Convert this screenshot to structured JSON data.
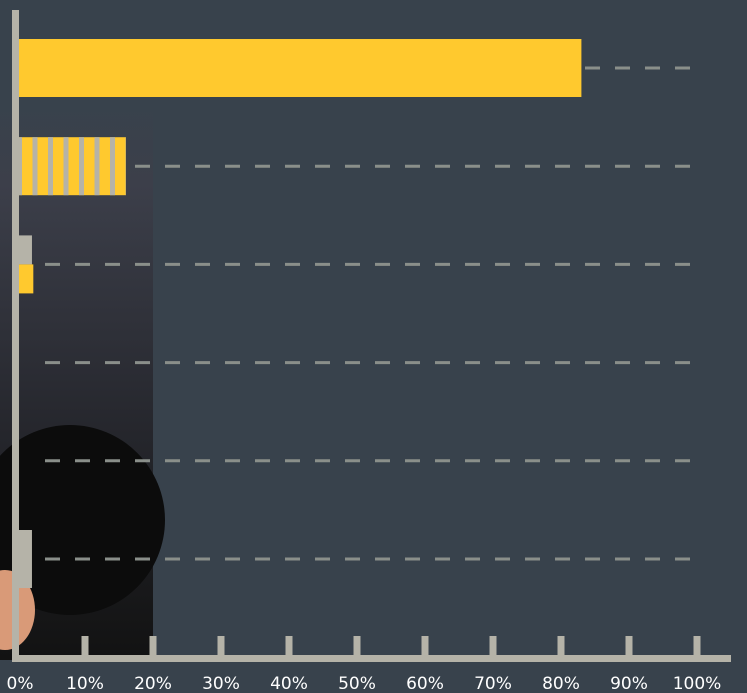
{
  "chart_data": {
    "type": "bar",
    "orientation": "horizontal",
    "categories": [
      null,
      null,
      null,
      null,
      null,
      null
    ],
    "series": [
      {
        "color": "#ffc92e",
        "values": [
          83,
          16,
          2.4,
          0,
          0,
          0
        ]
      },
      {
        "color": "#b5b3a8",
        "values": [
          0,
          16,
          2.2,
          0,
          0,
          2.2
        ]
      }
    ],
    "xlim": [
      0,
      105
    ],
    "xticks": [
      {
        "value": 0,
        "label": "0%"
      },
      {
        "value": 10,
        "label": "10%"
      },
      {
        "value": 20,
        "label": "20%"
      },
      {
        "value": 30,
        "label": "30%"
      },
      {
        "value": 40,
        "label": "40%"
      },
      {
        "value": 50,
        "label": "50%"
      },
      {
        "value": 60,
        "label": "60%"
      },
      {
        "value": 70,
        "label": "70%"
      },
      {
        "value": 80,
        "label": "80%"
      },
      {
        "value": 90,
        "label": "90%"
      },
      {
        "value": 100,
        "label": "100%"
      }
    ],
    "grid": true
  }
}
